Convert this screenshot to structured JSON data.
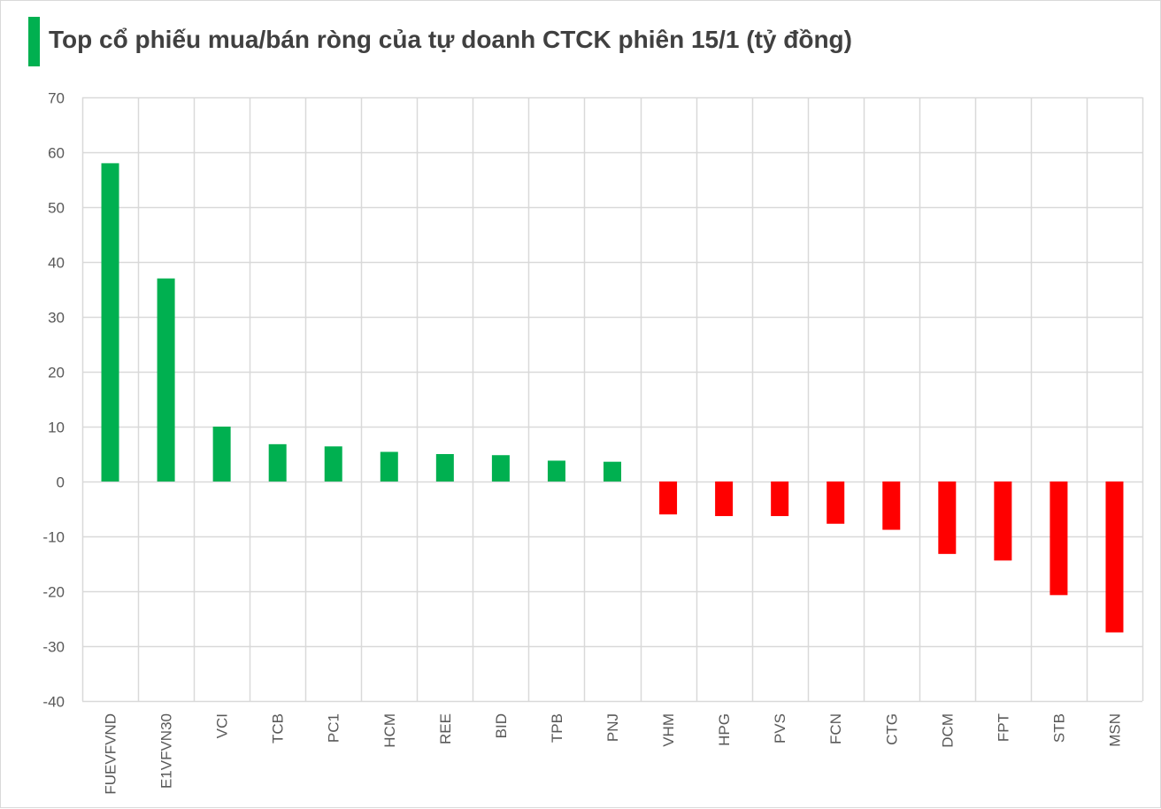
{
  "title": "Top cổ phiếu mua/bán ròng của tự doanh CTCK phiên 15/1 (tỷ đồng)",
  "colors": {
    "accent": "#00b050",
    "positive": "#00b050",
    "negative": "#ff0000",
    "grid": "#d9d9d9",
    "text": "#404040"
  },
  "chart_data": {
    "type": "bar",
    "title": "Top cổ phiếu mua/bán ròng của tự doanh CTCK phiên 15/1 (tỷ đồng)",
    "xlabel": "",
    "ylabel": "",
    "ylim": [
      -40,
      70
    ],
    "yticks": [
      70,
      60,
      50,
      40,
      30,
      20,
      10,
      0,
      -10,
      -20,
      -30,
      -40
    ],
    "grid": true,
    "legend": "none",
    "categories": [
      "FUEVFVND",
      "E1VFVN30",
      "VCI",
      "TCB",
      "PC1",
      "HCM",
      "REE",
      "BID",
      "TPB",
      "PNJ",
      "VHM",
      "HPG",
      "PVS",
      "FCN",
      "CTG",
      "DCM",
      "FPT",
      "STB",
      "MSN"
    ],
    "values": [
      58,
      37,
      10,
      6.8,
      6.4,
      5.4,
      5.0,
      4.8,
      3.8,
      3.6,
      -6,
      -6.3,
      -6.3,
      -7.7,
      -8.8,
      -13.2,
      -14.4,
      -20.7,
      -27.5
    ]
  }
}
